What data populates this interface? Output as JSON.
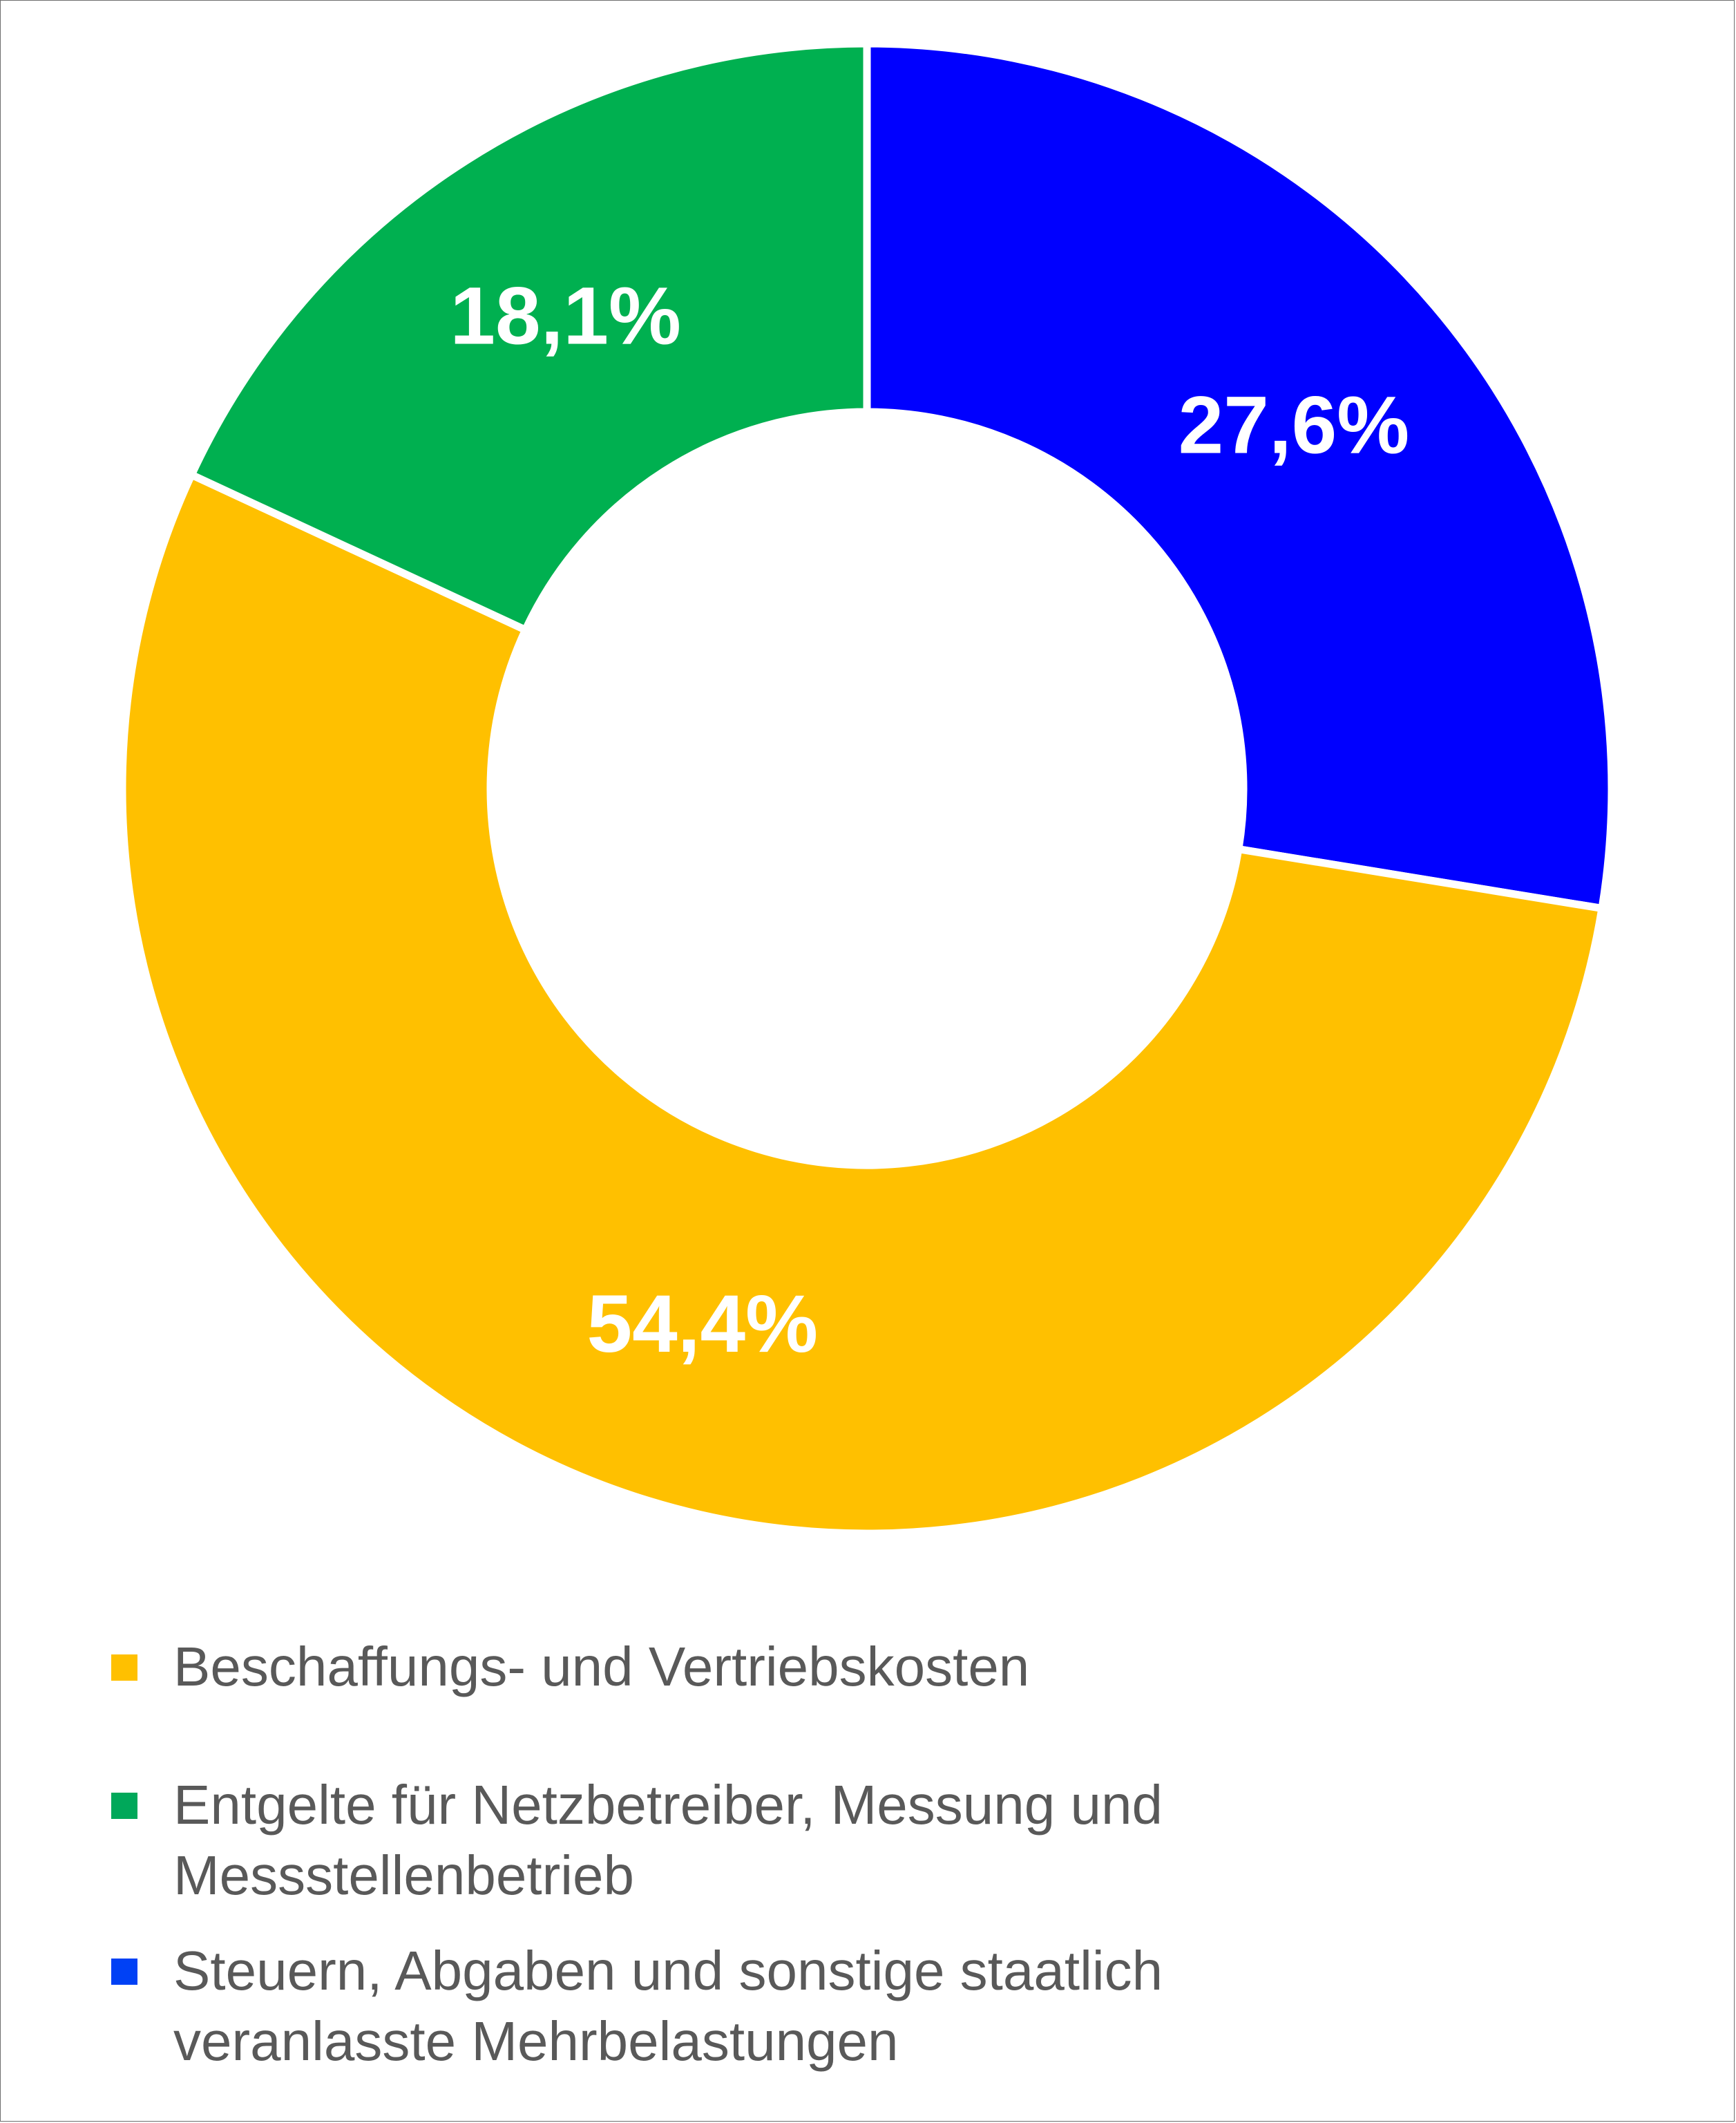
{
  "chart_data": {
    "type": "pie",
    "variant": "donut",
    "title": "",
    "start_angle_deg": 0,
    "direction": "clockwise",
    "series": [
      {
        "name": "Steuern, Abgaben und sonstige staatlich veranlasste Mehrbelastungen",
        "value": 27.6,
        "label": "27,6%",
        "color": "#0000ff",
        "legend_color": "#0041f5"
      },
      {
        "name": "Beschaffungs- und Vertriebskosten",
        "value": 54.4,
        "label": "54,4%",
        "color": "#ffc000",
        "legend_color": "#ffc000"
      },
      {
        "name": "Entgelte für Netzbetreiber, Messung und Messstellenbetrieb",
        "value": 18.1,
        "label": "18,1%",
        "color": "#00b050",
        "legend_color": "#00a85a"
      }
    ],
    "legend_order": [
      1,
      2,
      0
    ],
    "legend_position": "bottom"
  }
}
